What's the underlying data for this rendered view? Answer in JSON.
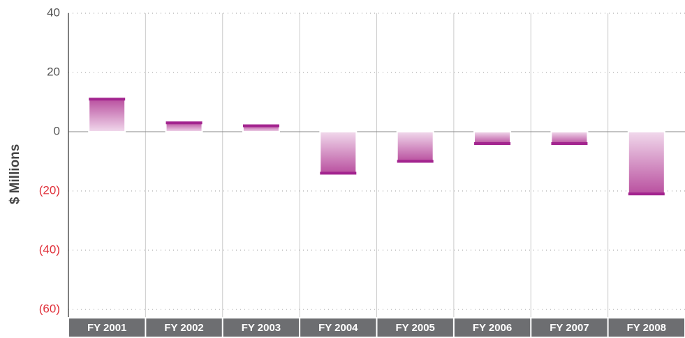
{
  "chart_data": {
    "type": "bar",
    "y_label": "$ Millions",
    "categories": [
      "FY 2001",
      "FY 2002",
      "FY 2003",
      "FY 2004",
      "FY 2005",
      "FY 2006",
      "FY 2007",
      "FY 2008"
    ],
    "values": [
      11,
      3,
      2,
      -14,
      -10,
      -4,
      -4,
      -21
    ],
    "color": "#a3258f",
    "negative_label_color": "#e0303a",
    "ylim": [
      -60,
      40
    ],
    "yticks": [
      40,
      20,
      0,
      {
        "value": -20,
        "label": "(20)"
      },
      {
        "value": -40,
        "label": "(40)"
      },
      {
        "value": -60,
        "label": "(60)"
      }
    ],
    "grid": true
  }
}
